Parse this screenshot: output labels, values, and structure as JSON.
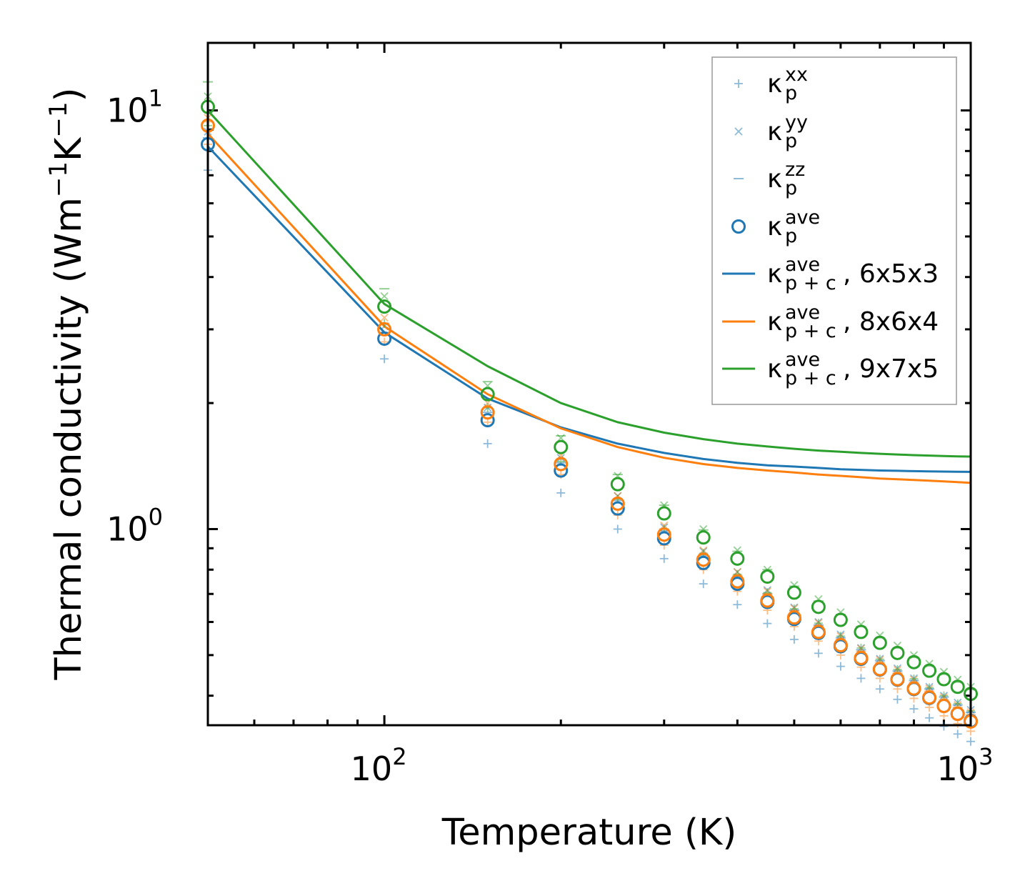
{
  "chart_data": {
    "type": "scatter",
    "title": "",
    "xlabel": "Temperature (K)",
    "ylabel_parts": [
      "Thermal conductivity (Wm",
      "−1",
      "K",
      "−1",
      ")"
    ],
    "xscale": "log",
    "yscale": "log",
    "xlim": [
      50,
      1000
    ],
    "ylim": [
      0.34,
      14.5
    ],
    "xticks": [
      {
        "value": 100,
        "base": "10",
        "exp": "2"
      },
      {
        "value": 1000,
        "base": "10",
        "exp": "3"
      }
    ],
    "yticks": [
      {
        "value": 1,
        "base": "10",
        "exp": "0"
      },
      {
        "value": 10,
        "base": "10",
        "exp": "1"
      }
    ],
    "x": [
      50,
      100,
      150,
      200,
      250,
      300,
      350,
      400,
      450,
      500,
      550,
      600,
      650,
      700,
      750,
      800,
      850,
      900,
      950,
      1000
    ],
    "series": [
      {
        "name": "6x5x3",
        "color": "#1f77b4",
        "line": [
          8.2,
          2.95,
          2.05,
          1.75,
          1.6,
          1.52,
          1.47,
          1.44,
          1.42,
          1.41,
          1.4,
          1.39,
          1.385,
          1.38,
          1.378,
          1.375,
          1.373,
          1.372,
          1.371,
          1.37
        ],
        "ave": [
          8.3,
          2.85,
          1.82,
          1.38,
          1.12,
          0.95,
          0.83,
          0.74,
          0.67,
          0.61,
          0.565,
          0.525,
          0.49,
          0.462,
          0.437,
          0.415,
          0.395,
          0.378,
          0.362,
          0.348
        ],
        "xx": [
          7.2,
          2.55,
          1.6,
          1.22,
          1.0,
          0.85,
          0.74,
          0.66,
          0.595,
          0.545,
          0.505,
          0.47,
          0.44,
          0.415,
          0.392,
          0.372,
          0.354,
          0.338,
          0.324,
          0.311
        ],
        "yy": [
          8.9,
          3.05,
          1.95,
          1.48,
          1.2,
          1.01,
          0.885,
          0.79,
          0.715,
          0.65,
          0.6,
          0.56,
          0.52,
          0.49,
          0.465,
          0.44,
          0.42,
          0.4,
          0.385,
          0.37
        ],
        "zz": [
          8.6,
          2.95,
          1.9,
          1.44,
          1.17,
          0.99,
          0.865,
          0.77,
          0.7,
          0.64,
          0.59,
          0.55,
          0.515,
          0.485,
          0.458,
          0.435,
          0.415,
          0.397,
          0.38,
          0.365
        ]
      },
      {
        "name": "8x6x4",
        "color": "#ff7f0e",
        "line": [
          8.8,
          3.05,
          2.1,
          1.74,
          1.57,
          1.48,
          1.43,
          1.4,
          1.38,
          1.365,
          1.35,
          1.34,
          1.33,
          1.32,
          1.315,
          1.31,
          1.305,
          1.3,
          1.295,
          1.29
        ],
        "ave": [
          9.2,
          3.0,
          1.9,
          1.43,
          1.15,
          0.97,
          0.845,
          0.75,
          0.675,
          0.615,
          0.568,
          0.528,
          0.492,
          0.463,
          0.438,
          0.416,
          0.396,
          0.378,
          0.362,
          0.347
        ],
        "xx": [
          8.3,
          2.8,
          1.8,
          1.35,
          1.08,
          0.915,
          0.8,
          0.71,
          0.64,
          0.585,
          0.54,
          0.5,
          0.468,
          0.44,
          0.415,
          0.394,
          0.375,
          0.358,
          0.343,
          0.329
        ],
        "yy": [
          9.6,
          3.2,
          2.0,
          1.5,
          1.2,
          1.02,
          0.89,
          0.79,
          0.71,
          0.647,
          0.597,
          0.555,
          0.518,
          0.487,
          0.461,
          0.437,
          0.416,
          0.397,
          0.38,
          0.365
        ],
        "zz": [
          9.4,
          3.1,
          1.95,
          1.47,
          1.18,
          1.0,
          0.87,
          0.775,
          0.7,
          0.637,
          0.587,
          0.545,
          0.51,
          0.479,
          0.453,
          0.43,
          0.41,
          0.391,
          0.375,
          0.36
        ]
      },
      {
        "name": "9x7x5",
        "color": "#2ca02c",
        "line": [
          10.0,
          3.45,
          2.45,
          2.0,
          1.8,
          1.7,
          1.64,
          1.6,
          1.575,
          1.555,
          1.54,
          1.53,
          1.52,
          1.513,
          1.507,
          1.502,
          1.498,
          1.495,
          1.492,
          1.49
        ],
        "ave": [
          10.2,
          3.4,
          2.1,
          1.57,
          1.28,
          1.09,
          0.955,
          0.85,
          0.77,
          0.705,
          0.652,
          0.607,
          0.568,
          0.535,
          0.506,
          0.481,
          0.459,
          0.438,
          0.42,
          0.404
        ],
        "xx": [
          9.2,
          3.1,
          1.95,
          1.45,
          1.18,
          1.0,
          0.875,
          0.78,
          0.705,
          0.645,
          0.596,
          0.555,
          0.52,
          0.489,
          0.462,
          0.439,
          0.418,
          0.4,
          0.383,
          0.368
        ],
        "yy": [
          10.8,
          3.6,
          2.2,
          1.65,
          1.34,
          1.14,
          1.0,
          0.89,
          0.8,
          0.735,
          0.68,
          0.633,
          0.592,
          0.557,
          0.527,
          0.5,
          0.477,
          0.456,
          0.437,
          0.42
        ],
        "zz": [
          11.7,
          3.75,
          2.25,
          1.67,
          1.35,
          1.14,
          0.995,
          0.885,
          0.8,
          0.73,
          0.673,
          0.625,
          0.585,
          0.55,
          0.52,
          0.494,
          0.471,
          0.45,
          0.431,
          0.414
        ]
      }
    ],
    "legend": {
      "position": "top-right",
      "entries": [
        {
          "marker": "plus",
          "color": "#1f77b4",
          "base": "κ",
          "sup": "xx",
          "sub": "p",
          "tail": ""
        },
        {
          "marker": "cross",
          "color": "#1f77b4",
          "base": "κ",
          "sup": "yy",
          "sub": "p",
          "tail": ""
        },
        {
          "marker": "dash",
          "color": "#1f77b4",
          "base": "κ",
          "sup": "zz",
          "sub": "p",
          "tail": ""
        },
        {
          "marker": "circle",
          "color": "#1f77b4",
          "base": "κ",
          "sup": "ave",
          "sub": "p",
          "tail": ""
        },
        {
          "marker": "line",
          "color": "#1f77b4",
          "base": "κ",
          "sup": "ave",
          "sub": "p + c",
          "tail": ", 6x5x3"
        },
        {
          "marker": "line",
          "color": "#ff7f0e",
          "base": "κ",
          "sup": "ave",
          "sub": "p + c",
          "tail": ", 8x6x4"
        },
        {
          "marker": "line",
          "color": "#2ca02c",
          "base": "κ",
          "sup": "ave",
          "sub": "p + c",
          "tail": ", 9x7x5"
        }
      ]
    }
  }
}
